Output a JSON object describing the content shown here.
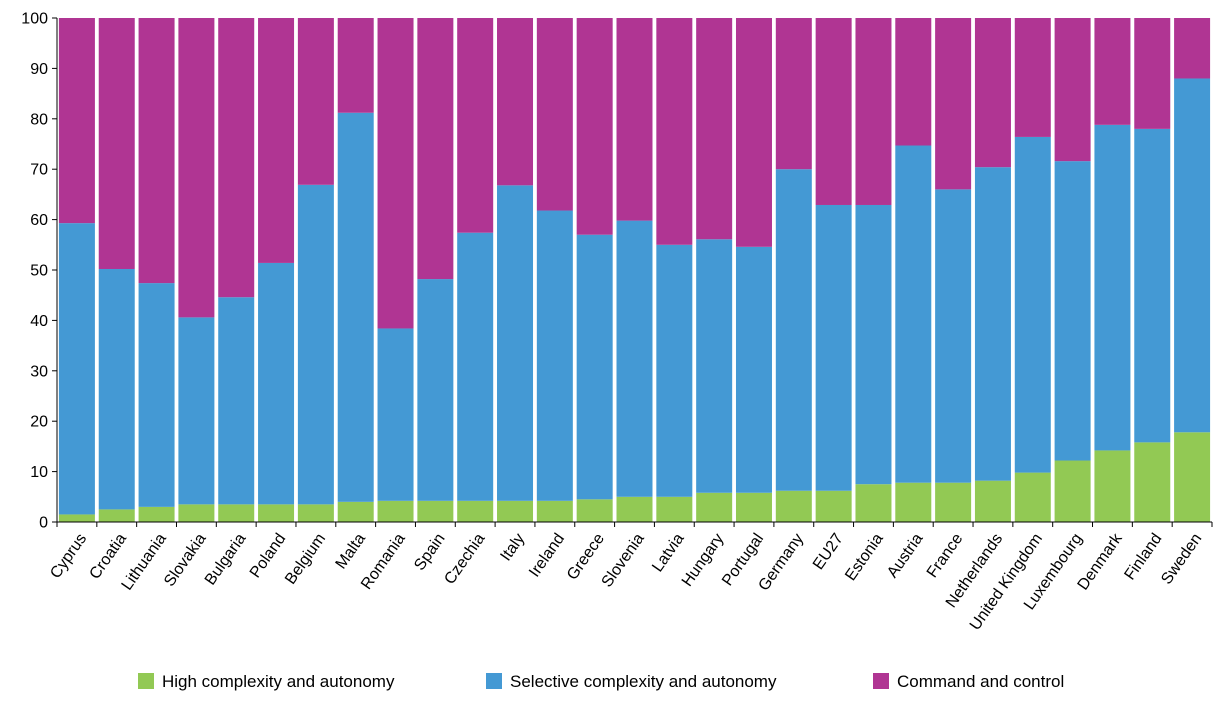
{
  "chart_data": {
    "type": "bar",
    "stacked": true,
    "categories": [
      "Cyprus",
      "Croatia",
      "Lithuania",
      "Slovakia",
      "Bulgaria",
      "Poland",
      "Belgium",
      "Malta",
      "Romania",
      "Spain",
      "Czechia",
      "Italy",
      "Ireland",
      "Greece",
      "Slovenia",
      "Latvia",
      "Hungary",
      "Portugal",
      "Germany",
      "EU27",
      "Estonia",
      "Austria",
      "France",
      "Netherlands",
      "United Kingdom",
      "Luxembourg",
      "Denmark",
      "Finland",
      "Sweden"
    ],
    "series": [
      {
        "name": "High complexity and autonomy",
        "color": "#92c954",
        "values": [
          1.5,
          2.5,
          3,
          3.5,
          3.5,
          3.5,
          3.5,
          4,
          4.2,
          4.2,
          4.2,
          4.2,
          4.2,
          4.5,
          5,
          5,
          5.8,
          5.8,
          6.2,
          6.2,
          7.5,
          7.8,
          7.8,
          8.2,
          9.8,
          12.2,
          14.2,
          15.8,
          17.8
        ]
      },
      {
        "name": "Selective complexity and autonomy",
        "color": "#4499d4",
        "values": [
          57.8,
          47.7,
          44.4,
          37.1,
          41.1,
          47.9,
          63.4,
          77.2,
          34.2,
          44,
          53.2,
          62.6,
          57.6,
          52.5,
          54.8,
          50,
          50.3,
          48.8,
          63.8,
          56.7,
          55.4,
          66.9,
          58.2,
          62.2,
          66.6,
          59.4,
          64.6,
          62.2,
          70.2
        ]
      },
      {
        "name": "Command and control",
        "color": "#b03593",
        "values": [
          40.7,
          49.8,
          52.6,
          59.4,
          55.4,
          48.6,
          33.1,
          18.8,
          61.6,
          51.8,
          42.6,
          33.2,
          38.2,
          43,
          40.2,
          45,
          43.9,
          45.4,
          30,
          37.1,
          37.1,
          25.3,
          34,
          29.6,
          23.6,
          28.4,
          21.2,
          22,
          12
        ]
      }
    ],
    "ylim": [
      0,
      100
    ],
    "yticks": [
      "0",
      "10",
      "20",
      "30",
      "40",
      "50",
      "60",
      "70",
      "80",
      "90",
      "100"
    ],
    "grid": false,
    "legend_position": "bottom"
  }
}
